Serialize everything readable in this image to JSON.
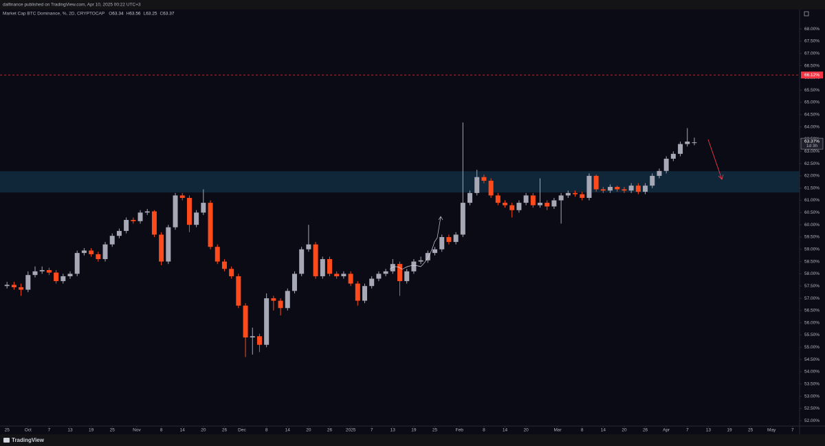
{
  "header": {
    "publisher": "dalfinance published on TradingView.com, Apr 10, 2025 00:22 UTC+3",
    "brand": "TradingView"
  },
  "chart_data": {
    "type": "candlestick",
    "title": "Market Cap BTC Dominance, %, 2D, CRYPTOCAP",
    "legend_fields": [
      "O",
      "H",
      "L",
      "C"
    ],
    "up_color": "#a7a8b6",
    "down_color": "#ff4a1c",
    "x": [
      "2024-09-25",
      "2024-09-27",
      "2024-09-29",
      "2024-10-01",
      "2024-10-03",
      "2024-10-05",
      "2024-10-07",
      "2024-10-09",
      "2024-10-11",
      "2024-10-13",
      "2024-10-15",
      "2024-10-17",
      "2024-10-19",
      "2024-10-21",
      "2024-10-23",
      "2024-10-25",
      "2024-10-27",
      "2024-10-29",
      "2024-10-31",
      "2024-11-02",
      "2024-11-04",
      "2024-11-06",
      "2024-11-08",
      "2024-11-10",
      "2024-11-12",
      "2024-11-14",
      "2024-11-16",
      "2024-11-18",
      "2024-11-20",
      "2024-11-22",
      "2024-11-24",
      "2024-11-26",
      "2024-11-28",
      "2024-11-30",
      "2024-12-02",
      "2024-12-04",
      "2024-12-06",
      "2024-12-08",
      "2024-12-10",
      "2024-12-12",
      "2024-12-14",
      "2024-12-16",
      "2024-12-18",
      "2024-12-20",
      "2024-12-22",
      "2024-12-24",
      "2024-12-26",
      "2024-12-28",
      "2024-12-30",
      "2025-01-01",
      "2025-01-03",
      "2025-01-05",
      "2025-01-07",
      "2025-01-09",
      "2025-01-11",
      "2025-01-13",
      "2025-01-15",
      "2025-01-17",
      "2025-01-19",
      "2025-01-21",
      "2025-01-23",
      "2025-01-25",
      "2025-01-27",
      "2025-01-29",
      "2025-01-31",
      "2025-02-02",
      "2025-02-04",
      "2025-02-06",
      "2025-02-08",
      "2025-02-10",
      "2025-02-12",
      "2025-02-14",
      "2025-02-16",
      "2025-02-18",
      "2025-02-20",
      "2025-02-22",
      "2025-02-24",
      "2025-02-26",
      "2025-02-28",
      "2025-03-02",
      "2025-03-04",
      "2025-03-06",
      "2025-03-08",
      "2025-03-10",
      "2025-03-12",
      "2025-03-14",
      "2025-03-16",
      "2025-03-18",
      "2025-03-20",
      "2025-03-22",
      "2025-03-24",
      "2025-03-26",
      "2025-03-28",
      "2025-03-30",
      "2025-04-01",
      "2025-04-03",
      "2025-04-05",
      "2025-04-07",
      "2025-04-09"
    ],
    "open": [
      57.5,
      57.55,
      57.45,
      57.35,
      57.95,
      58.1,
      58.15,
      58.05,
      57.7,
      57.9,
      58.0,
      58.85,
      58.95,
      58.8,
      58.6,
      59.2,
      59.55,
      59.75,
      60.2,
      60.15,
      60.5,
      60.55,
      59.6,
      58.5,
      59.9,
      61.2,
      61.1,
      60.0,
      60.5,
      60.9,
      59.1,
      58.5,
      58.2,
      57.9,
      56.7,
      55.4,
      55.45,
      55.1,
      57.0,
      56.9,
      56.6,
      57.3,
      58.0,
      59.0,
      59.2,
      57.9,
      58.6,
      58.0,
      57.9,
      58.0,
      57.6,
      56.9,
      57.5,
      57.8,
      58.0,
      58.1,
      58.4,
      57.7,
      58.1,
      58.5,
      58.55,
      58.85,
      59.0,
      59.5,
      59.3,
      59.6,
      60.9,
      61.3,
      61.95,
      61.8,
      61.2,
      60.9,
      60.8,
      60.6,
      60.9,
      61.2,
      60.8,
      60.9,
      60.75,
      61.0,
      61.2,
      61.3,
      61.25,
      61.1,
      62.0,
      61.45,
      61.4,
      61.55,
      61.45,
      61.4,
      61.6,
      61.35,
      61.6,
      62.0,
      62.2,
      62.7,
      62.9,
      63.3,
      63.34
    ],
    "high": [
      57.67,
      57.67,
      57.6,
      58.1,
      58.3,
      58.3,
      58.25,
      58.15,
      58.0,
      58.1,
      58.95,
      59.05,
      59.05,
      58.9,
      59.3,
      59.65,
      59.85,
      60.3,
      60.3,
      60.6,
      60.65,
      60.6,
      59.7,
      60.0,
      61.3,
      61.3,
      61.2,
      60.6,
      61.45,
      61.0,
      59.2,
      58.6,
      58.3,
      58.0,
      56.8,
      55.8,
      55.55,
      57.2,
      57.1,
      57.0,
      57.4,
      58.1,
      59.1,
      60.0,
      59.3,
      58.7,
      58.7,
      58.1,
      58.1,
      58.1,
      57.7,
      57.6,
      57.9,
      58.1,
      58.2,
      58.6,
      58.5,
      58.2,
      58.6,
      58.7,
      58.95,
      59.1,
      59.6,
      59.6,
      59.7,
      64.18,
      61.4,
      62.25,
      62.05,
      61.9,
      61.3,
      61.0,
      60.9,
      61.0,
      61.3,
      61.3,
      61.9,
      61.0,
      61.1,
      61.3,
      61.4,
      61.4,
      61.35,
      62.1,
      62.05,
      61.55,
      61.65,
      61.6,
      61.55,
      61.7,
      61.7,
      61.7,
      62.1,
      62.3,
      62.8,
      63.0,
      63.4,
      63.95,
      63.56
    ],
    "low": [
      57.4,
      57.35,
      57.1,
      57.25,
      57.85,
      58.0,
      57.95,
      57.6,
      57.6,
      57.8,
      57.9,
      58.75,
      58.7,
      58.5,
      58.5,
      59.1,
      59.45,
      59.65,
      60.05,
      60.05,
      60.4,
      59.5,
      58.35,
      58.4,
      59.8,
      61.0,
      59.7,
      59.9,
      60.4,
      59.0,
      58.4,
      58.1,
      57.8,
      56.6,
      54.6,
      54.7,
      54.8,
      55.0,
      56.5,
      56.3,
      56.5,
      57.2,
      57.9,
      58.9,
      57.8,
      57.8,
      57.9,
      57.8,
      57.8,
      57.5,
      56.7,
      56.8,
      57.4,
      57.7,
      57.9,
      58.0,
      57.1,
      57.6,
      58.0,
      58.4,
      58.45,
      58.75,
      58.9,
      59.2,
      59.2,
      59.5,
      60.8,
      61.2,
      61.7,
      61.1,
      60.8,
      60.7,
      60.3,
      60.5,
      60.8,
      60.7,
      60.7,
      60.6,
      60.65,
      60.05,
      61.1,
      61.15,
      61.0,
      61.0,
      61.35,
      61.3,
      61.3,
      61.35,
      61.3,
      61.3,
      61.25,
      61.25,
      61.5,
      61.9,
      62.1,
      62.6,
      62.8,
      63.2,
      63.25
    ],
    "close": [
      57.55,
      57.45,
      57.35,
      57.95,
      58.1,
      58.15,
      58.05,
      57.7,
      57.9,
      58.0,
      58.85,
      58.95,
      58.8,
      58.6,
      59.2,
      59.55,
      59.75,
      60.2,
      60.15,
      60.5,
      60.55,
      59.6,
      58.5,
      59.9,
      61.2,
      61.1,
      60.0,
      60.5,
      60.9,
      59.1,
      58.5,
      58.2,
      57.9,
      56.7,
      55.4,
      55.45,
      55.1,
      57.0,
      56.9,
      56.6,
      57.3,
      58.0,
      59.0,
      59.2,
      57.9,
      58.6,
      58.0,
      57.9,
      58.0,
      57.6,
      56.9,
      57.5,
      57.8,
      58.0,
      58.1,
      58.4,
      57.7,
      58.1,
      58.5,
      58.55,
      58.85,
      59.0,
      59.5,
      59.3,
      59.6,
      60.9,
      61.3,
      61.95,
      61.8,
      61.2,
      60.9,
      60.8,
      60.6,
      60.9,
      61.2,
      60.8,
      60.9,
      60.75,
      61.0,
      61.2,
      61.3,
      61.25,
      61.1,
      62.0,
      61.45,
      61.4,
      61.55,
      61.45,
      61.4,
      61.6,
      61.35,
      61.6,
      62.0,
      62.2,
      62.7,
      62.9,
      63.3,
      63.4,
      63.37
    ],
    "last_price_label": "63.37%",
    "countdown": "1d 3h",
    "hline": {
      "value": 66.12,
      "label": "66.12%",
      "color": "#f23645"
    },
    "zone": {
      "low": 61.32,
      "high": 62.19,
      "color": "#0f2a3d"
    },
    "xlim": [
      "2024-09-23",
      "2025-05-09"
    ],
    "ylim": [
      51.78,
      68.79
    ],
    "xticks": [
      {
        "value": "2024-09-25",
        "label": "25"
      },
      {
        "value": "2024-10-01",
        "label": "Oct"
      },
      {
        "value": "2024-10-07",
        "label": "7"
      },
      {
        "value": "2024-10-13",
        "label": "13"
      },
      {
        "value": "2024-10-19",
        "label": "19"
      },
      {
        "value": "2024-10-25",
        "label": "25"
      },
      {
        "value": "2024-11-01",
        "label": "Nov"
      },
      {
        "value": "2024-11-08",
        "label": "8"
      },
      {
        "value": "2024-11-14",
        "label": "14"
      },
      {
        "value": "2024-11-20",
        "label": "20"
      },
      {
        "value": "2024-11-26",
        "label": "26"
      },
      {
        "value": "2024-12-01",
        "label": "Dec"
      },
      {
        "value": "2024-12-08",
        "label": "8"
      },
      {
        "value": "2024-12-14",
        "label": "14"
      },
      {
        "value": "2024-12-20",
        "label": "20"
      },
      {
        "value": "2024-12-26",
        "label": "26"
      },
      {
        "value": "2025-01-01",
        "label": "2025"
      },
      {
        "value": "2025-01-07",
        "label": "7"
      },
      {
        "value": "2025-01-13",
        "label": "13"
      },
      {
        "value": "2025-01-19",
        "label": "19"
      },
      {
        "value": "2025-01-25",
        "label": "25"
      },
      {
        "value": "2025-02-01",
        "label": "Feb"
      },
      {
        "value": "2025-02-08",
        "label": "8"
      },
      {
        "value": "2025-02-14",
        "label": "14"
      },
      {
        "value": "2025-02-20",
        "label": "20"
      },
      {
        "value": "2025-03-01",
        "label": "Mar"
      },
      {
        "value": "2025-03-08",
        "label": "8"
      },
      {
        "value": "2025-03-14",
        "label": "14"
      },
      {
        "value": "2025-03-20",
        "label": "20"
      },
      {
        "value": "2025-03-26",
        "label": "26"
      },
      {
        "value": "2025-04-01",
        "label": "Apr"
      },
      {
        "value": "2025-04-07",
        "label": "7"
      },
      {
        "value": "2025-04-13",
        "label": "13"
      },
      {
        "value": "2025-04-19",
        "label": "19"
      },
      {
        "value": "2025-04-25",
        "label": "25"
      },
      {
        "value": "2025-05-01",
        "label": "May"
      },
      {
        "value": "2025-05-07",
        "label": "7"
      }
    ],
    "yticks": [
      {
        "value": 52,
        "label": "52.00%"
      },
      {
        "value": 52.5,
        "label": "52.50%"
      },
      {
        "value": 53,
        "label": "53.00%"
      },
      {
        "value": 53.5,
        "label": "53.50%"
      },
      {
        "value": 54,
        "label": "54.00%"
      },
      {
        "value": 54.5,
        "label": "54.50%"
      },
      {
        "value": 55,
        "label": "55.00%"
      },
      {
        "value": 55.5,
        "label": "55.50%"
      },
      {
        "value": 56,
        "label": "56.00%"
      },
      {
        "value": 56.5,
        "label": "56.50%"
      },
      {
        "value": 57,
        "label": "57.00%"
      },
      {
        "value": 57.5,
        "label": "57.50%"
      },
      {
        "value": 58,
        "label": "58.00%"
      },
      {
        "value": 58.5,
        "label": "58.50%"
      },
      {
        "value": 59,
        "label": "59.00%"
      },
      {
        "value": 59.5,
        "label": "59.50%"
      },
      {
        "value": 60,
        "label": "60.00%"
      },
      {
        "value": 60.5,
        "label": "60.50%"
      },
      {
        "value": 61,
        "label": "61.00%"
      },
      {
        "value": 61.5,
        "label": "61.50%"
      },
      {
        "value": 62,
        "label": "62.00%"
      },
      {
        "value": 62.5,
        "label": "62.50%"
      },
      {
        "value": 63,
        "label": "63.00%"
      },
      {
        "value": 63.5,
        "label": "63.50%"
      },
      {
        "value": 64,
        "label": "64.00%"
      },
      {
        "value": 64.5,
        "label": "64.50%"
      },
      {
        "value": 65,
        "label": "65.00%"
      },
      {
        "value": 65.5,
        "label": "65.50%"
      },
      {
        "value": 66,
        "label": "66.00%"
      },
      {
        "value": 66.5,
        "label": "66.50%"
      },
      {
        "value": 67,
        "label": "67.00%"
      },
      {
        "value": 67.5,
        "label": "67.50%"
      },
      {
        "value": 68,
        "label": "68.00%"
      }
    ]
  }
}
